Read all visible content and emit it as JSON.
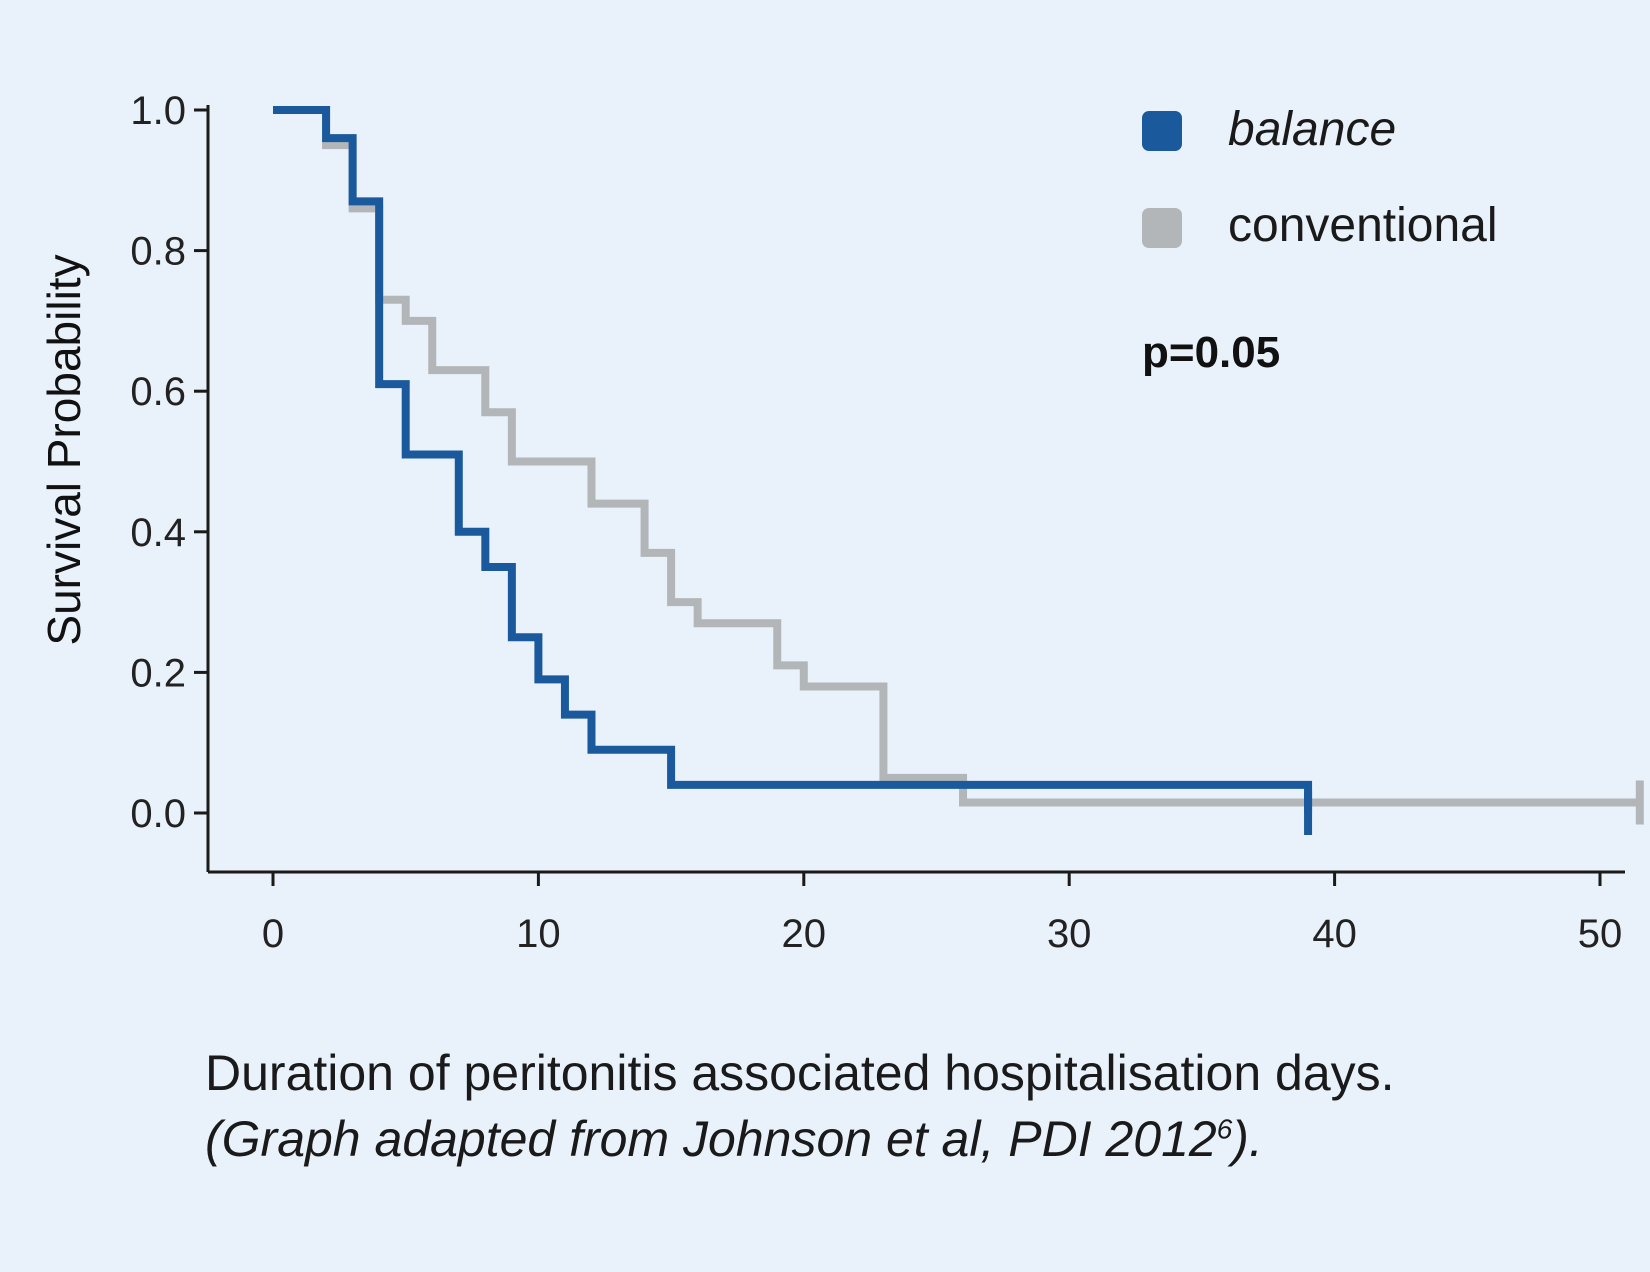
{
  "chart_data": {
    "type": "line",
    "title": "",
    "xlabel": "",
    "ylabel": "Survival Probability",
    "xlim": [
      -2.5,
      51
    ],
    "ylim": [
      -0.08,
      1.0
    ],
    "xticks": [
      "0",
      "10",
      "20",
      "30",
      "40",
      "50"
    ],
    "yticks": [
      "0.0",
      "0.2",
      "0.4",
      "0.6",
      "0.8",
      "1.0"
    ],
    "step": true,
    "grid": false,
    "legend_position": "top-right",
    "annotation": "p=0.05",
    "series": [
      {
        "name": "balance",
        "color": "#1a5a9c",
        "x": [
          0,
          2,
          3,
          4,
          5,
          7,
          8,
          9,
          10,
          11,
          12,
          15,
          39
        ],
        "y": [
          1.0,
          0.96,
          0.87,
          0.61,
          0.51,
          0.4,
          0.35,
          0.25,
          0.19,
          0.14,
          0.09,
          0.04,
          0.0
        ]
      },
      {
        "name": "conventional",
        "color": "#b3b6b9",
        "x": [
          0,
          2,
          3,
          4,
          5,
          6,
          8,
          9,
          12,
          14,
          15,
          16,
          19,
          20,
          23,
          26,
          51.5
        ],
        "y": [
          1.0,
          0.95,
          0.86,
          0.73,
          0.7,
          0.63,
          0.57,
          0.5,
          0.44,
          0.37,
          0.3,
          0.27,
          0.21,
          0.18,
          0.05,
          0.015,
          0.015
        ]
      }
    ]
  },
  "legend": {
    "balance_label": "balance",
    "conventional_label": "conventional"
  },
  "caption": {
    "line1": "Duration of peritonitis associated hospitalisation days.",
    "line2_main": "(Graph adapted from Johnson et al, PDI 2012",
    "line2_sup": "6",
    "line2_end": ")."
  }
}
